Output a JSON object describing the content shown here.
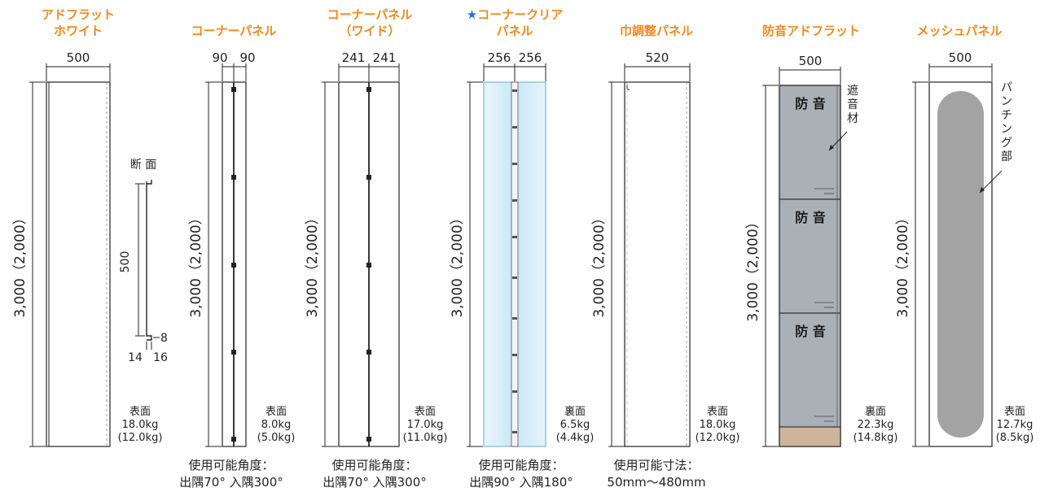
{
  "panels": [
    {
      "title_lines": [
        "アドフラット",
        "ホワイト"
      ],
      "width_label": "500",
      "height_label": "3,000（2,000）",
      "weight_lines": [
        "表面",
        "18.0kg",
        "(12.0kg)"
      ]
    },
    {
      "title_lines": [
        "コーナーパネル"
      ],
      "width_labels": [
        "90",
        "90"
      ],
      "height_label": "3,000（2,000）",
      "weight_lines": [
        "表面",
        "8.0kg",
        "(5.0kg)"
      ],
      "footer_lines": [
        "使用可能角度：",
        "出隅70°  入隅300°"
      ]
    },
    {
      "title_lines": [
        "コーナーパネル",
        "（ワイド）"
      ],
      "width_labels": [
        "241",
        "241"
      ],
      "height_label": "3,000（2,000）",
      "weight_lines": [
        "表面",
        "17.0kg",
        "(11.0kg)"
      ],
      "footer_lines": [
        "使用可能角度：",
        "出隅70°  入隅300°"
      ]
    },
    {
      "title_star": "★",
      "title_lines": [
        "コーナークリア",
        "パネル"
      ],
      "width_labels": [
        "256",
        "256"
      ],
      "height_label": "3,000（2,000）",
      "weight_lines": [
        "裏面",
        "6.5kg",
        "(4.4kg)"
      ],
      "footer_lines": [
        "使用可能角度：",
        "出隅90°  入隅180°"
      ]
    },
    {
      "title_lines": [
        "巾調整パネル"
      ],
      "width_label": "520",
      "height_label": "3,000（2,000）",
      "weight_lines": [
        "表面",
        "18.0kg",
        "(12.0kg)"
      ],
      "footer_lines": [
        "使用可能寸法：",
        "50mm〜480mm"
      ]
    },
    {
      "title_lines": [
        "防音アドフラット"
      ],
      "width_label": "500",
      "height_label": "3,000（2,000）",
      "weight_lines": [
        "裏面",
        "22.3kg",
        "(14.8kg)"
      ],
      "stamp": "防 音",
      "annotation": [
        "遮",
        "音",
        "材"
      ]
    },
    {
      "title_lines": [
        "メッシュパネル"
      ],
      "width_label": "500",
      "height_label": "3,000（2,000）",
      "weight_lines": [
        "表面",
        "12.7kg",
        "(8.5kg)"
      ],
      "annotation": [
        "パ",
        "ン",
        "チ",
        "ン",
        "グ",
        "部"
      ]
    }
  ],
  "section": {
    "label": "断 面",
    "height": "500",
    "lip": "8",
    "bottom_dims": [
      "14",
      "16"
    ]
  },
  "colors": {
    "title": "#ee8a1c",
    "star": "#1a73d9",
    "acoustic_panel": "#a9b1b6",
    "acoustic_base": "#cdb49a",
    "mesh": "#a3a3a3",
    "clear": "#d6ecf8"
  }
}
